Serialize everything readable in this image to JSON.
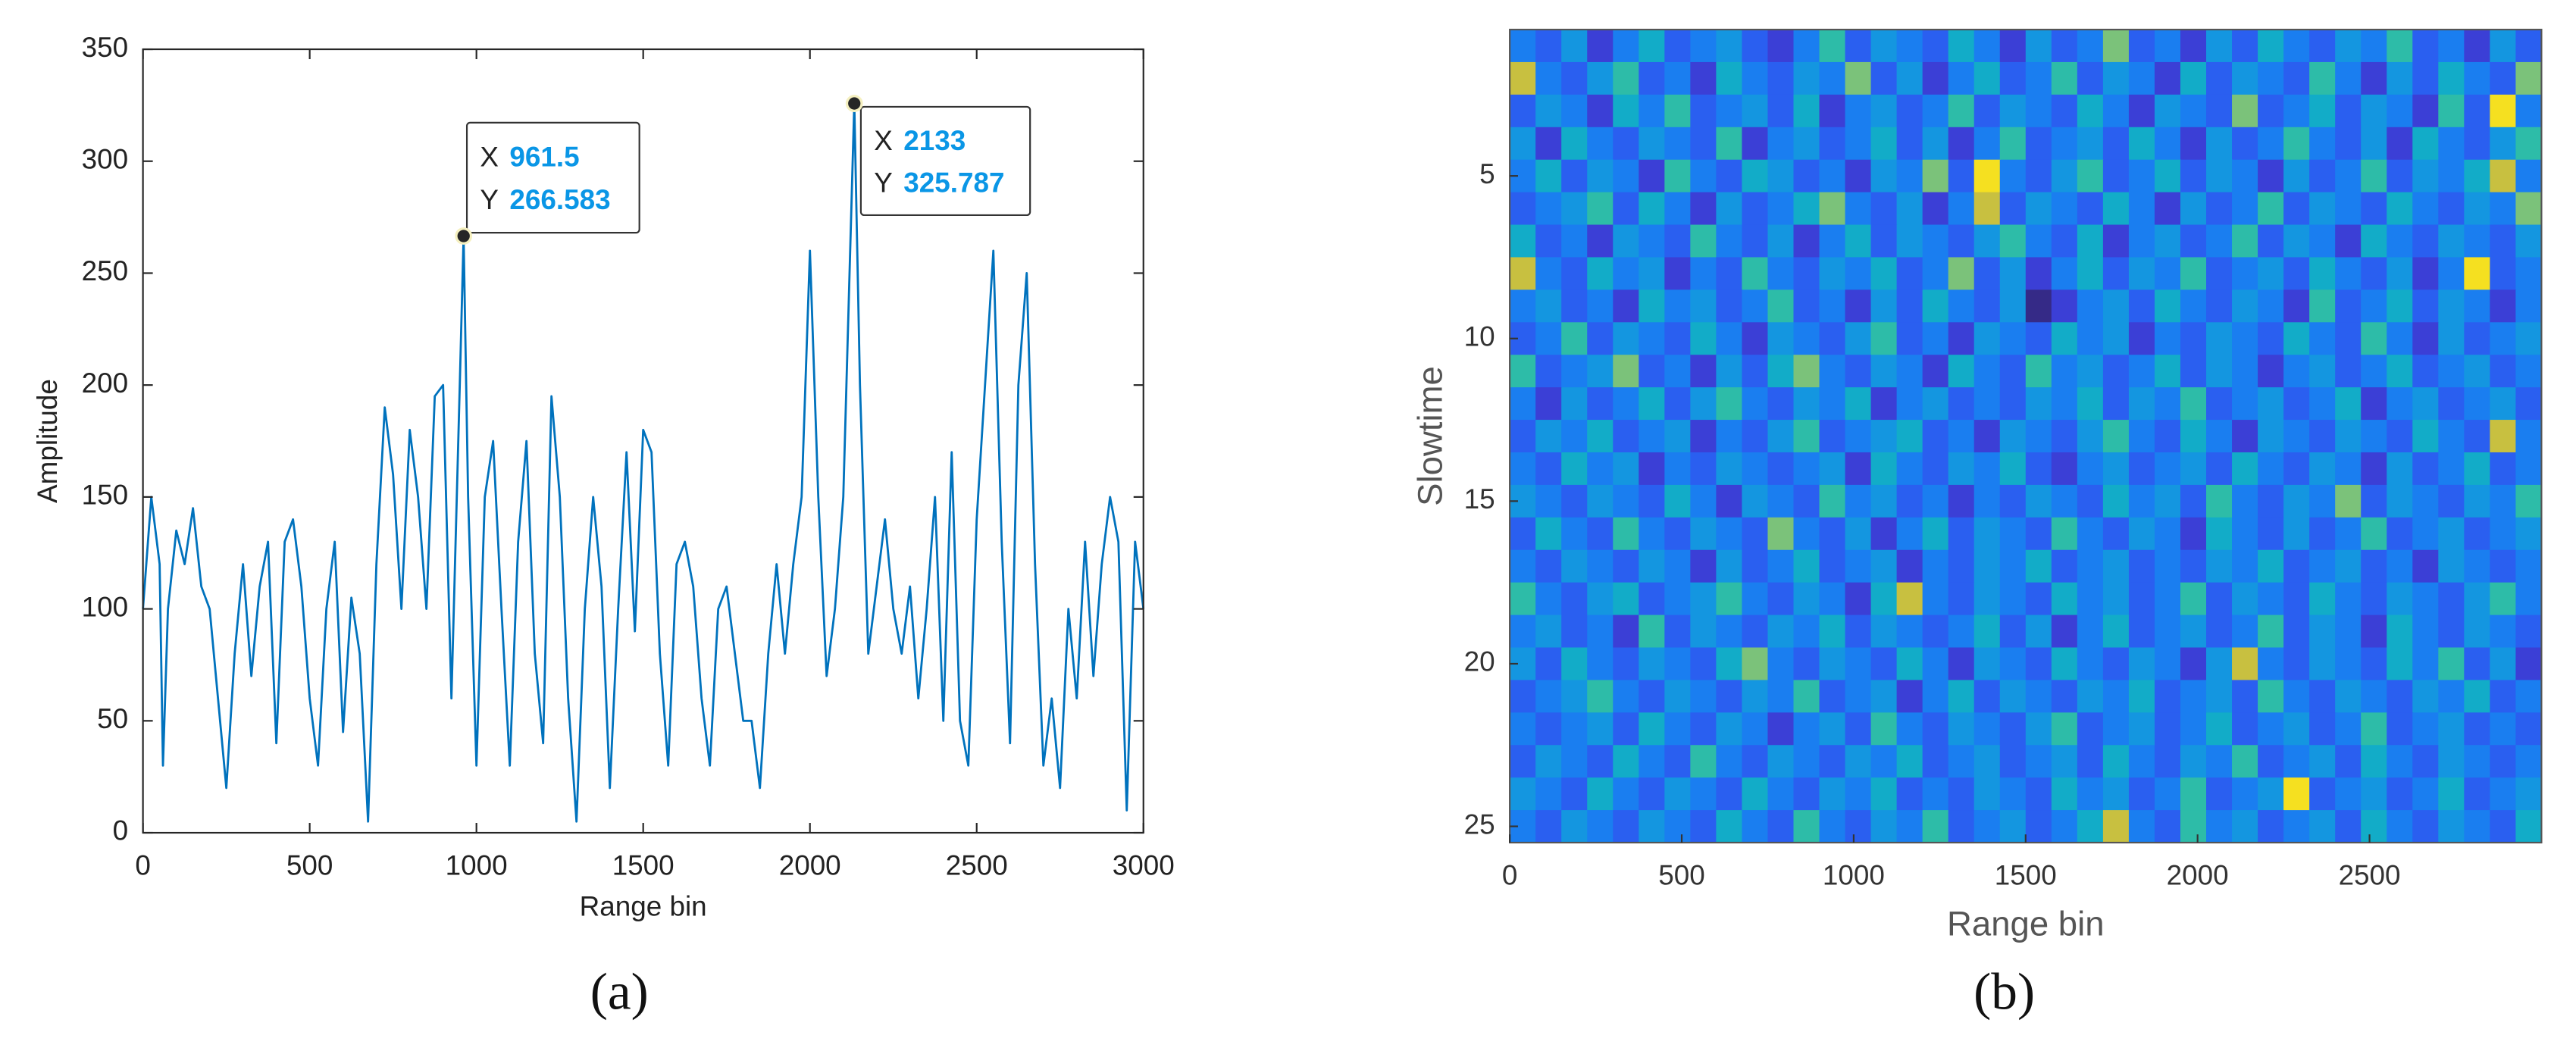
{
  "chart_data": [
    {
      "type": "line",
      "caption": "(a)",
      "x_label": "Range bin",
      "y_label": "Amplitude",
      "xlim": [
        0,
        3000
      ],
      "xticks": [
        0,
        500,
        1000,
        1500,
        2000,
        2500,
        3000
      ],
      "ylim": [
        0,
        350
      ],
      "yticks": [
        0,
        50,
        100,
        150,
        200,
        250,
        300,
        350
      ],
      "x": [
        0,
        25,
        50,
        60,
        75,
        100,
        125,
        150,
        175,
        200,
        225,
        250,
        275,
        300,
        325,
        350,
        375,
        400,
        425,
        450,
        475,
        500,
        525,
        550,
        575,
        600,
        625,
        650,
        675,
        700,
        725,
        750,
        775,
        800,
        825,
        850,
        875,
        900,
        925,
        950,
        961.5,
        975,
        1000,
        1025,
        1050,
        1075,
        1100,
        1125,
        1150,
        1175,
        1200,
        1225,
        1250,
        1275,
        1300,
        1325,
        1350,
        1375,
        1400,
        1425,
        1450,
        1475,
        1500,
        1525,
        1550,
        1575,
        1600,
        1625,
        1650,
        1675,
        1700,
        1725,
        1750,
        1775,
        1800,
        1825,
        1850,
        1875,
        1900,
        1925,
        1950,
        1975,
        2000,
        2025,
        2050,
        2075,
        2100,
        2133,
        2150,
        2175,
        2200,
        2225,
        2250,
        2275,
        2300,
        2325,
        2350,
        2375,
        2400,
        2425,
        2450,
        2475,
        2500,
        2525,
        2550,
        2575,
        2600,
        2625,
        2650,
        2675,
        2700,
        2725,
        2750,
        2775,
        2800,
        2825,
        2850,
        2875,
        2900,
        2925,
        2950,
        2975,
        3000
      ],
      "series": [
        {
          "color": "#0072bd",
          "values": [
            100,
            150,
            120,
            30,
            100,
            135,
            120,
            145,
            110,
            100,
            60,
            20,
            80,
            120,
            70,
            110,
            130,
            40,
            130,
            140,
            110,
            60,
            30,
            100,
            130,
            45,
            105,
            80,
            5,
            120,
            190,
            160,
            100,
            180,
            150,
            100,
            195,
            200,
            60,
            200,
            266.583,
            150,
            30,
            150,
            175,
            100,
            30,
            130,
            175,
            80,
            40,
            195,
            150,
            60,
            5,
            100,
            150,
            110,
            20,
            100,
            170,
            90,
            180,
            170,
            80,
            30,
            120,
            130,
            110,
            60,
            30,
            100,
            110,
            80,
            50,
            50,
            20,
            80,
            120,
            80,
            120,
            150,
            260,
            150,
            70,
            100,
            150,
            325.787,
            200,
            80,
            110,
            140,
            100,
            80,
            110,
            60,
            100,
            150,
            50,
            170,
            50,
            30,
            140,
            200,
            260,
            130,
            40,
            200,
            250,
            120,
            30,
            60,
            20,
            100,
            60,
            130,
            70,
            120,
            150,
            130,
            10,
            130,
            100
          ]
        }
      ],
      "annotations": [
        {
          "x_name": "X",
          "y_name": "Y",
          "x": 961.5,
          "y": 266.583
        },
        {
          "x_name": "X",
          "y_name": "Y",
          "x": 2133,
          "y": 325.787
        }
      ]
    },
    {
      "type": "heatmap",
      "caption": "(b)",
      "x_label": "Range bin",
      "y_label": "Slowtime",
      "xlim": [
        0,
        3000
      ],
      "xticks": [
        0,
        500,
        1000,
        1500,
        2000,
        2500
      ],
      "ylim": [
        0.5,
        25.5
      ],
      "yticks": [
        5,
        10,
        15,
        20,
        25
      ],
      "clim": [
        0,
        9
      ],
      "colormap": [
        "#352a87",
        "#3b3fd6",
        "#2a5ff0",
        "#1a7ef0",
        "#1496e0",
        "#12acc8",
        "#2dbca8",
        "#7bc27a",
        "#c8c040",
        "#f5e020"
      ],
      "z": [
        [
          3,
          2,
          4,
          1,
          3,
          5,
          2,
          3,
          4,
          2,
          1,
          3,
          6,
          2,
          4,
          3,
          2,
          5,
          3,
          1,
          4,
          2,
          3,
          7,
          2,
          3,
          1,
          4,
          2,
          5,
          3,
          2,
          4,
          3,
          6,
          2,
          3,
          1,
          4,
          2
        ],
        [
          8,
          3,
          2,
          4,
          6,
          2,
          3,
          1,
          5,
          3,
          2,
          4,
          3,
          7,
          2,
          4,
          1,
          3,
          5,
          2,
          3,
          6,
          2,
          4,
          3,
          1,
          5,
          2,
          4,
          3,
          2,
          6,
          3,
          1,
          4,
          2,
          5,
          3,
          2,
          7
        ],
        [
          2,
          4,
          3,
          1,
          5,
          3,
          6,
          2,
          3,
          4,
          2,
          5,
          1,
          3,
          4,
          2,
          3,
          6,
          2,
          4,
          3,
          2,
          5,
          3,
          1,
          4,
          3,
          2,
          7,
          2,
          3,
          5,
          2,
          4,
          3,
          1,
          6,
          2,
          9,
          3
        ],
        [
          4,
          1,
          5,
          3,
          2,
          4,
          3,
          2,
          6,
          1,
          3,
          4,
          2,
          3,
          5,
          2,
          4,
          1,
          3,
          6,
          2,
          3,
          4,
          2,
          5,
          3,
          1,
          4,
          2,
          3,
          6,
          3,
          2,
          4,
          1,
          5,
          3,
          2,
          4,
          6
        ],
        [
          3,
          5,
          2,
          4,
          3,
          1,
          6,
          3,
          2,
          5,
          4,
          2,
          3,
          1,
          4,
          3,
          7,
          2,
          9,
          3,
          2,
          4,
          6,
          2,
          3,
          5,
          2,
          4,
          3,
          1,
          4,
          2,
          3,
          6,
          2,
          4,
          3,
          5,
          8,
          3
        ],
        [
          2,
          3,
          4,
          6,
          2,
          5,
          3,
          1,
          4,
          2,
          3,
          5,
          7,
          3,
          2,
          4,
          1,
          3,
          8,
          2,
          4,
          3,
          2,
          5,
          3,
          1,
          4,
          2,
          3,
          6,
          2,
          4,
          3,
          2,
          5,
          3,
          2,
          4,
          3,
          7
        ],
        [
          5,
          2,
          3,
          1,
          4,
          3,
          2,
          6,
          3,
          2,
          4,
          1,
          3,
          5,
          2,
          4,
          3,
          2,
          4,
          6,
          3,
          2,
          5,
          1,
          3,
          4,
          2,
          3,
          6,
          2,
          4,
          3,
          1,
          5,
          3,
          2,
          4,
          3,
          2,
          4
        ],
        [
          8,
          3,
          2,
          5,
          3,
          4,
          1,
          3,
          2,
          6,
          3,
          2,
          4,
          3,
          5,
          2,
          3,
          7,
          2,
          4,
          1,
          3,
          5,
          2,
          4,
          3,
          6,
          2,
          3,
          4,
          2,
          5,
          3,
          2,
          4,
          1,
          3,
          9,
          2,
          3
        ],
        [
          3,
          4,
          2,
          3,
          1,
          5,
          3,
          4,
          2,
          3,
          6,
          2,
          3,
          1,
          4,
          2,
          5,
          3,
          2,
          4,
          0,
          1,
          3,
          4,
          2,
          5,
          3,
          2,
          4,
          3,
          1,
          6,
          2,
          3,
          5,
          2,
          4,
          3,
          1,
          3
        ],
        [
          2,
          3,
          6,
          2,
          4,
          3,
          2,
          5,
          3,
          1,
          4,
          3,
          2,
          4,
          6,
          2,
          3,
          1,
          4,
          3,
          2,
          5,
          3,
          4,
          1,
          3,
          2,
          4,
          3,
          2,
          5,
          3,
          2,
          6,
          3,
          1,
          4,
          2,
          3,
          4
        ],
        [
          6,
          2,
          3,
          4,
          7,
          2,
          3,
          1,
          4,
          2,
          5,
          7,
          3,
          2,
          4,
          3,
          1,
          5,
          3,
          2,
          6,
          3,
          4,
          2,
          3,
          5,
          2,
          4,
          3,
          1,
          3,
          4,
          2,
          3,
          5,
          2,
          3,
          4,
          2,
          3
        ],
        [
          3,
          1,
          4,
          2,
          3,
          5,
          2,
          4,
          6,
          3,
          2,
          4,
          3,
          5,
          1,
          3,
          4,
          2,
          3,
          2,
          4,
          3,
          5,
          2,
          4,
          3,
          6,
          2,
          3,
          4,
          2,
          3,
          5,
          1,
          3,
          4,
          2,
          3,
          4,
          2
        ],
        [
          2,
          4,
          3,
          5,
          2,
          3,
          4,
          1,
          3,
          2,
          4,
          6,
          2,
          3,
          4,
          5,
          2,
          3,
          1,
          4,
          3,
          2,
          4,
          6,
          3,
          2,
          5,
          3,
          1,
          4,
          3,
          2,
          4,
          3,
          2,
          5,
          3,
          2,
          8,
          3
        ],
        [
          3,
          2,
          5,
          3,
          4,
          1,
          3,
          2,
          4,
          3,
          2,
          3,
          4,
          1,
          5,
          3,
          2,
          4,
          3,
          5,
          2,
          1,
          3,
          4,
          2,
          3,
          4,
          2,
          5,
          3,
          2,
          4,
          3,
          1,
          4,
          2,
          3,
          5,
          2,
          3
        ],
        [
          4,
          3,
          2,
          4,
          3,
          2,
          5,
          3,
          1,
          4,
          3,
          2,
          6,
          3,
          4,
          2,
          3,
          1,
          3,
          2,
          4,
          3,
          2,
          5,
          3,
          4,
          2,
          6,
          3,
          2,
          4,
          3,
          7,
          2,
          4,
          3,
          2,
          4,
          3,
          6
        ],
        [
          2,
          5,
          3,
          2,
          6,
          3,
          2,
          4,
          3,
          2,
          7,
          3,
          2,
          4,
          1,
          3,
          5,
          2,
          4,
          3,
          2,
          6,
          3,
          2,
          4,
          3,
          1,
          5,
          3,
          2,
          4,
          2,
          3,
          6,
          2,
          3,
          4,
          2,
          3,
          4
        ],
        [
          3,
          2,
          4,
          3,
          2,
          4,
          3,
          1,
          4,
          2,
          3,
          5,
          2,
          3,
          4,
          1,
          3,
          2,
          4,
          3,
          5,
          2,
          3,
          4,
          2,
          3,
          2,
          4,
          3,
          5,
          2,
          3,
          4,
          2,
          3,
          1,
          4,
          3,
          2,
          3
        ],
        [
          6,
          3,
          2,
          4,
          5,
          2,
          3,
          4,
          6,
          3,
          2,
          4,
          3,
          1,
          5,
          8,
          3,
          2,
          4,
          3,
          2,
          5,
          3,
          4,
          2,
          3,
          6,
          2,
          4,
          3,
          2,
          5,
          3,
          2,
          4,
          3,
          2,
          4,
          6,
          3
        ],
        [
          3,
          4,
          2,
          3,
          1,
          6,
          2,
          4,
          3,
          2,
          4,
          3,
          5,
          2,
          4,
          3,
          2,
          3,
          5,
          2,
          4,
          1,
          3,
          5,
          2,
          3,
          4,
          2,
          3,
          6,
          2,
          4,
          3,
          1,
          5,
          3,
          2,
          4,
          3,
          2
        ],
        [
          4,
          2,
          5,
          3,
          2,
          4,
          3,
          2,
          5,
          7,
          3,
          2,
          4,
          3,
          2,
          5,
          3,
          1,
          4,
          3,
          2,
          5,
          3,
          2,
          4,
          3,
          1,
          4,
          8,
          3,
          2,
          4,
          3,
          2,
          5,
          3,
          6,
          2,
          4,
          1
        ],
        [
          2,
          3,
          4,
          6,
          3,
          2,
          4,
          3,
          2,
          4,
          3,
          6,
          2,
          3,
          4,
          1,
          3,
          5,
          2,
          4,
          3,
          2,
          4,
          3,
          5,
          2,
          3,
          4,
          2,
          6,
          3,
          2,
          4,
          3,
          2,
          4,
          3,
          5,
          2,
          3
        ],
        [
          3,
          2,
          3,
          4,
          2,
          5,
          3,
          2,
          4,
          3,
          1,
          3,
          4,
          2,
          6,
          3,
          2,
          4,
          3,
          2,
          4,
          6,
          2,
          3,
          4,
          2,
          3,
          5,
          2,
          3,
          4,
          2,
          3,
          6,
          2,
          3,
          4,
          2,
          3,
          2
        ],
        [
          2,
          4,
          3,
          2,
          5,
          3,
          2,
          6,
          3,
          2,
          4,
          3,
          2,
          4,
          3,
          5,
          2,
          3,
          4,
          2,
          3,
          4,
          2,
          5,
          3,
          2,
          4,
          3,
          6,
          2,
          3,
          4,
          2,
          5,
          3,
          2,
          4,
          3,
          2,
          3
        ],
        [
          4,
          3,
          2,
          5,
          3,
          2,
          4,
          3,
          2,
          5,
          3,
          2,
          4,
          3,
          5,
          2,
          3,
          2,
          4,
          3,
          2,
          5,
          3,
          4,
          2,
          3,
          6,
          2,
          3,
          4,
          9,
          2,
          3,
          4,
          2,
          3,
          5,
          2,
          3,
          4
        ],
        [
          3,
          2,
          4,
          3,
          2,
          4,
          3,
          2,
          5,
          3,
          2,
          6,
          3,
          2,
          4,
          3,
          6,
          2,
          3,
          4,
          2,
          3,
          5,
          8,
          3,
          2,
          6,
          3,
          4,
          2,
          3,
          4,
          2,
          5,
          3,
          2,
          4,
          3,
          2,
          5
        ]
      ]
    }
  ]
}
